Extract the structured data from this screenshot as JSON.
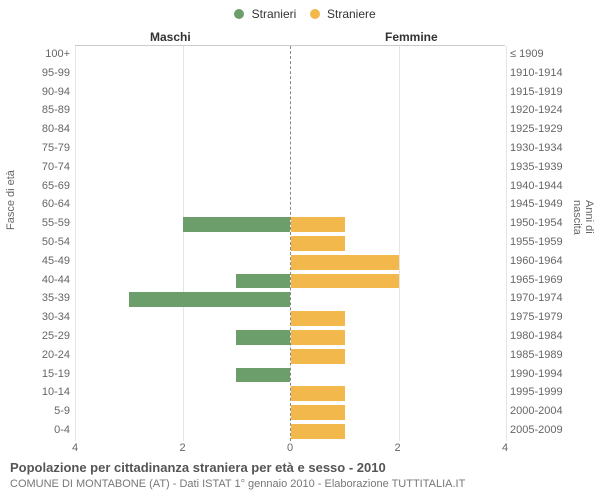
{
  "legend": {
    "male_label": "Stranieri",
    "female_label": "Straniere",
    "male_color": "#6b9e6b",
    "female_color": "#f2b84b"
  },
  "section_titles": {
    "left": "Maschi",
    "right": "Femmine"
  },
  "axis_titles": {
    "left": "Fasce di età",
    "right": "Anni di nascita"
  },
  "chart": {
    "type": "population-pyramid",
    "xmax": 4,
    "xtick_step": 2,
    "row_height": 18.8,
    "background_color": "#ffffff",
    "grid_color": "#e5e5e5",
    "center_line": "#888",
    "rows": [
      {
        "age": "100+",
        "birth": "≤ 1909",
        "m": 0,
        "f": 0
      },
      {
        "age": "95-99",
        "birth": "1910-1914",
        "m": 0,
        "f": 0
      },
      {
        "age": "90-94",
        "birth": "1915-1919",
        "m": 0,
        "f": 0
      },
      {
        "age": "85-89",
        "birth": "1920-1924",
        "m": 0,
        "f": 0
      },
      {
        "age": "80-84",
        "birth": "1925-1929",
        "m": 0,
        "f": 0
      },
      {
        "age": "75-79",
        "birth": "1930-1934",
        "m": 0,
        "f": 0
      },
      {
        "age": "70-74",
        "birth": "1935-1939",
        "m": 0,
        "f": 0
      },
      {
        "age": "65-69",
        "birth": "1940-1944",
        "m": 0,
        "f": 0
      },
      {
        "age": "60-64",
        "birth": "1945-1949",
        "m": 0,
        "f": 0
      },
      {
        "age": "55-59",
        "birth": "1950-1954",
        "m": 2,
        "f": 1
      },
      {
        "age": "50-54",
        "birth": "1955-1959",
        "m": 0,
        "f": 1
      },
      {
        "age": "45-49",
        "birth": "1960-1964",
        "m": 0,
        "f": 2
      },
      {
        "age": "40-44",
        "birth": "1965-1969",
        "m": 1,
        "f": 2
      },
      {
        "age": "35-39",
        "birth": "1970-1974",
        "m": 3,
        "f": 0
      },
      {
        "age": "30-34",
        "birth": "1975-1979",
        "m": 0,
        "f": 1
      },
      {
        "age": "25-29",
        "birth": "1980-1984",
        "m": 1,
        "f": 1
      },
      {
        "age": "20-24",
        "birth": "1985-1989",
        "m": 0,
        "f": 1
      },
      {
        "age": "15-19",
        "birth": "1990-1994",
        "m": 1,
        "f": 0
      },
      {
        "age": "10-14",
        "birth": "1995-1999",
        "m": 0,
        "f": 1
      },
      {
        "age": "5-9",
        "birth": "2000-2004",
        "m": 0,
        "f": 1
      },
      {
        "age": "0-4",
        "birth": "2005-2009",
        "m": 0,
        "f": 1
      }
    ]
  },
  "caption": {
    "title": "Popolazione per cittadinanza straniera per età e sesso - 2010",
    "sub": "COMUNE DI MONTABONE (AT) - Dati ISTAT 1° gennaio 2010 - Elaborazione TUTTITALIA.IT"
  }
}
